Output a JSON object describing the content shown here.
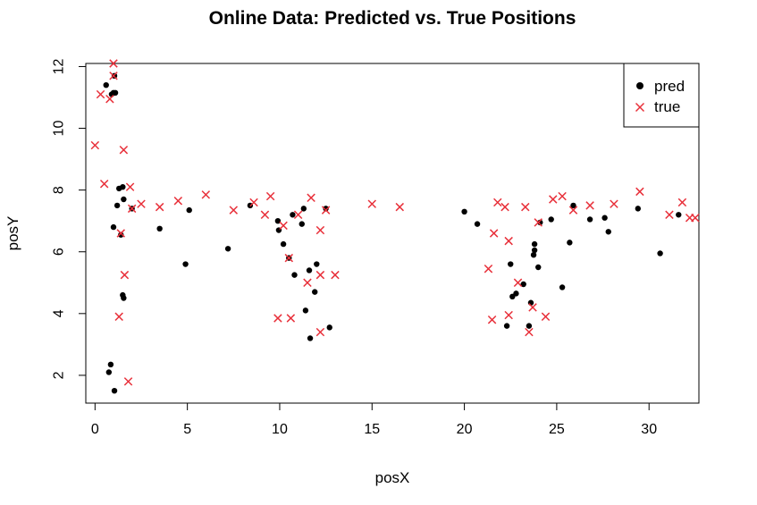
{
  "chart_data": {
    "type": "scatter",
    "title": "Online Data: Predicted vs. True Positions",
    "xlabel": "posX",
    "ylabel": "posY",
    "xlim": [
      -0.5,
      32.7
    ],
    "ylim": [
      1.1,
      12.1
    ],
    "xticks": [
      0,
      5,
      10,
      15,
      20,
      25,
      30
    ],
    "yticks": [
      2,
      4,
      6,
      8,
      10,
      12
    ],
    "grid": false,
    "legend": {
      "position": "top-right",
      "entries": [
        "pred",
        "true"
      ]
    },
    "series": [
      {
        "name": "pred",
        "marker": "filled-circle",
        "color": "#000000",
        "points": [
          [
            0.6,
            11.4
          ],
          [
            0.9,
            11.1
          ],
          [
            1.0,
            11.15
          ],
          [
            1.1,
            11.15
          ],
          [
            1.05,
            11.7
          ],
          [
            1.0,
            6.8
          ],
          [
            1.2,
            7.5
          ],
          [
            1.3,
            8.05
          ],
          [
            1.4,
            6.55
          ],
          [
            1.5,
            8.1
          ],
          [
            1.55,
            7.7
          ],
          [
            2.0,
            7.4
          ],
          [
            1.5,
            4.6
          ],
          [
            1.55,
            4.5
          ],
          [
            0.75,
            2.1
          ],
          [
            0.85,
            2.35
          ],
          [
            1.05,
            1.5
          ],
          [
            3.5,
            6.75
          ],
          [
            5.1,
            7.35
          ],
          [
            4.9,
            5.6
          ],
          [
            7.2,
            6.1
          ],
          [
            8.4,
            7.5
          ],
          [
            9.9,
            7.0
          ],
          [
            9.95,
            6.7
          ],
          [
            10.2,
            6.25
          ],
          [
            10.5,
            5.8
          ],
          [
            10.7,
            7.2
          ],
          [
            10.8,
            5.25
          ],
          [
            11.2,
            6.9
          ],
          [
            11.3,
            7.4
          ],
          [
            11.4,
            4.1
          ],
          [
            11.6,
            5.4
          ],
          [
            11.65,
            3.2
          ],
          [
            11.9,
            4.7
          ],
          [
            12.0,
            5.6
          ],
          [
            12.5,
            7.4
          ],
          [
            12.7,
            3.55
          ],
          [
            20.0,
            7.3
          ],
          [
            20.7,
            6.9
          ],
          [
            22.3,
            3.6
          ],
          [
            22.5,
            5.6
          ],
          [
            22.6,
            4.55
          ],
          [
            22.8,
            4.65
          ],
          [
            23.2,
            4.95
          ],
          [
            23.5,
            3.6
          ],
          [
            23.6,
            4.35
          ],
          [
            23.8,
            6.25
          ],
          [
            23.8,
            6.05
          ],
          [
            23.75,
            5.9
          ],
          [
            24.0,
            5.5
          ],
          [
            24.1,
            6.95
          ],
          [
            24.7,
            7.05
          ],
          [
            25.3,
            4.85
          ],
          [
            25.7,
            6.3
          ],
          [
            25.9,
            7.5
          ],
          [
            26.8,
            7.05
          ],
          [
            27.6,
            7.1
          ],
          [
            27.8,
            6.65
          ],
          [
            29.4,
            7.4
          ],
          [
            30.6,
            5.95
          ],
          [
            31.6,
            7.2
          ]
        ]
      },
      {
        "name": "true",
        "marker": "cross",
        "color": "#e8303a",
        "points": [
          [
            1.0,
            12.1
          ],
          [
            1.0,
            11.7
          ],
          [
            0.3,
            11.1
          ],
          [
            0.8,
            10.95
          ],
          [
            0.0,
            9.45
          ],
          [
            1.55,
            9.3
          ],
          [
            0.5,
            8.2
          ],
          [
            1.9,
            8.1
          ],
          [
            2.0,
            7.4
          ],
          [
            2.5,
            7.55
          ],
          [
            1.4,
            6.6
          ],
          [
            1.6,
            5.25
          ],
          [
            1.3,
            3.9
          ],
          [
            1.8,
            1.8
          ],
          [
            3.5,
            7.45
          ],
          [
            4.5,
            7.65
          ],
          [
            6.0,
            7.85
          ],
          [
            7.5,
            7.35
          ],
          [
            8.6,
            7.6
          ],
          [
            9.2,
            7.2
          ],
          [
            9.5,
            7.8
          ],
          [
            10.2,
            6.85
          ],
          [
            11.0,
            7.2
          ],
          [
            11.7,
            7.75
          ],
          [
            12.2,
            6.7
          ],
          [
            12.5,
            7.35
          ],
          [
            10.5,
            5.8
          ],
          [
            11.5,
            5.0
          ],
          [
            12.2,
            5.25
          ],
          [
            13.0,
            5.25
          ],
          [
            9.9,
            3.85
          ],
          [
            10.6,
            3.85
          ],
          [
            12.2,
            3.4
          ],
          [
            15.0,
            7.55
          ],
          [
            16.5,
            7.45
          ],
          [
            21.3,
            5.45
          ],
          [
            21.6,
            6.6
          ],
          [
            21.8,
            7.6
          ],
          [
            22.2,
            7.45
          ],
          [
            22.4,
            6.35
          ],
          [
            22.4,
            3.95
          ],
          [
            21.5,
            3.8
          ],
          [
            22.9,
            5.0
          ],
          [
            23.3,
            7.45
          ],
          [
            23.5,
            3.4
          ],
          [
            23.7,
            4.2
          ],
          [
            24.0,
            6.95
          ],
          [
            24.4,
            3.9
          ],
          [
            24.8,
            7.7
          ],
          [
            25.3,
            7.8
          ],
          [
            25.9,
            7.35
          ],
          [
            26.8,
            7.5
          ],
          [
            28.1,
            7.55
          ],
          [
            29.5,
            7.95
          ],
          [
            31.1,
            7.2
          ],
          [
            31.8,
            7.6
          ],
          [
            32.2,
            7.1
          ],
          [
            32.5,
            7.1
          ]
        ]
      }
    ]
  }
}
